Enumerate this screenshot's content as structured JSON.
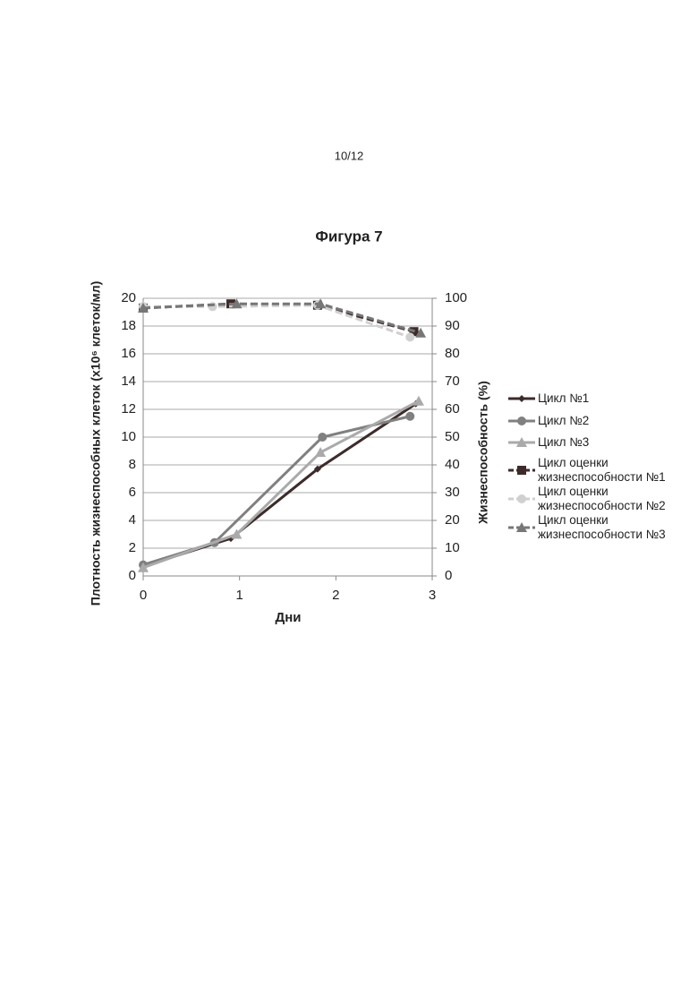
{
  "page_number": "10/12",
  "chart_data": {
    "type": "line",
    "title": "Фигура 7",
    "xlabel": "Дни",
    "ylabel": "Плотность жизнеспособных клеток (x10⁶ клеток/мл)",
    "y2label": "Жизнеспособность (%)",
    "xlim": [
      0,
      3
    ],
    "xticks": [
      0,
      1,
      2,
      3
    ],
    "ylim": [
      0,
      20
    ],
    "yticks": [
      0,
      2,
      4,
      6,
      8,
      10,
      12,
      14,
      16,
      18,
      20
    ],
    "y2lim": [
      0,
      100
    ],
    "y2ticks": [
      0,
      10,
      20,
      30,
      40,
      50,
      60,
      70,
      80,
      90,
      100
    ],
    "grid": true,
    "series": [
      {
        "name": "Цикл №1",
        "color": "#3d2b2b",
        "marker": "diamond",
        "style": "solid",
        "x": [
          0,
          0.91,
          1.81,
          2.83
        ],
        "values": [
          0.7,
          2.7,
          7.7,
          12.4
        ]
      },
      {
        "name": "Цикл №2",
        "color": "#808080",
        "marker": "circle",
        "style": "solid",
        "x": [
          0,
          0.74,
          1.86,
          2.77
        ],
        "values": [
          0.8,
          2.4,
          10.0,
          11.5
        ]
      },
      {
        "name": "Цикл №3",
        "color": "#aaaaaa",
        "marker": "triangle",
        "style": "solid",
        "x": [
          0,
          0.97,
          1.84,
          2.86
        ],
        "values": [
          0.6,
          3.0,
          8.9,
          12.6
        ]
      },
      {
        "name": "Цикл оценки жизнеспособности №1",
        "color": "#3d2b2b",
        "marker": "square",
        "style": "dashed",
        "axis": "y2",
        "x": [
          0,
          0.91,
          1.81,
          2.81
        ],
        "values": [
          96.5,
          98,
          97.5,
          88
        ]
      },
      {
        "name": "Цикл оценки жизнеспособности №2",
        "color": "#d0d0d0",
        "marker": "circle",
        "style": "dashed",
        "axis": "y2",
        "x": [
          0,
          0.72,
          1.81,
          2.77
        ],
        "values": [
          97,
          97,
          97.5,
          86
        ]
      },
      {
        "name": "Цикл оценки жизнеспособности №3",
        "color": "#777777",
        "marker": "triangle",
        "style": "dashed",
        "axis": "y2",
        "x": [
          0,
          0.97,
          1.84,
          2.88
        ],
        "values": [
          96.5,
          98,
          98,
          87.5
        ]
      }
    ]
  }
}
